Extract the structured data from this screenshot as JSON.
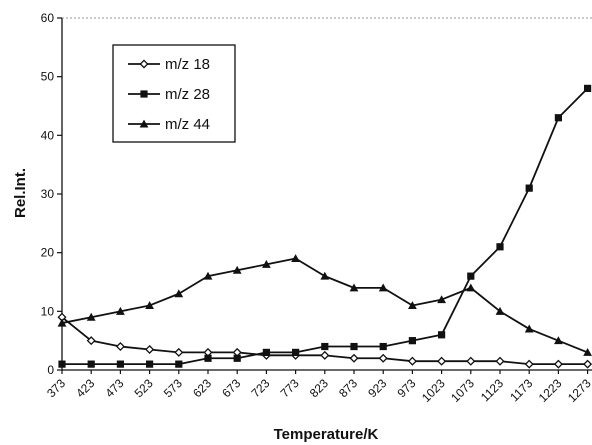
{
  "chart_data": {
    "type": "line",
    "xlabel": "Temperature/K",
    "ylabel": "Rel.Int.",
    "ylim": [
      0,
      60
    ],
    "yticks": [
      0,
      10,
      20,
      30,
      40,
      50,
      60
    ],
    "categories": [
      "373",
      "423",
      "473",
      "523",
      "573",
      "623",
      "673",
      "723",
      "773",
      "823",
      "873",
      "923",
      "973",
      "1023",
      "1073",
      "1123",
      "1173",
      "1223",
      "1273"
    ],
    "grid": false,
    "legend_position": "top-left",
    "series": [
      {
        "name": "m/z 18",
        "marker": "diamond-open",
        "values": [
          9,
          5,
          4,
          3.5,
          3,
          3,
          3,
          2.5,
          2.5,
          2.5,
          2,
          2,
          1.5,
          1.5,
          1.5,
          1.5,
          1,
          1,
          1
        ]
      },
      {
        "name": "m/z 28",
        "marker": "square-filled",
        "values": [
          1,
          1,
          1,
          1,
          1,
          2,
          2,
          3,
          3,
          4,
          4,
          4,
          5,
          6,
          16,
          21,
          31,
          43,
          48
        ]
      },
      {
        "name": "m/z 44",
        "marker": "triangle-filled",
        "values": [
          8,
          9,
          10,
          11,
          13,
          16,
          17,
          18,
          19,
          16,
          14,
          14,
          11,
          12,
          14,
          10,
          7,
          5,
          3
        ]
      }
    ]
  }
}
